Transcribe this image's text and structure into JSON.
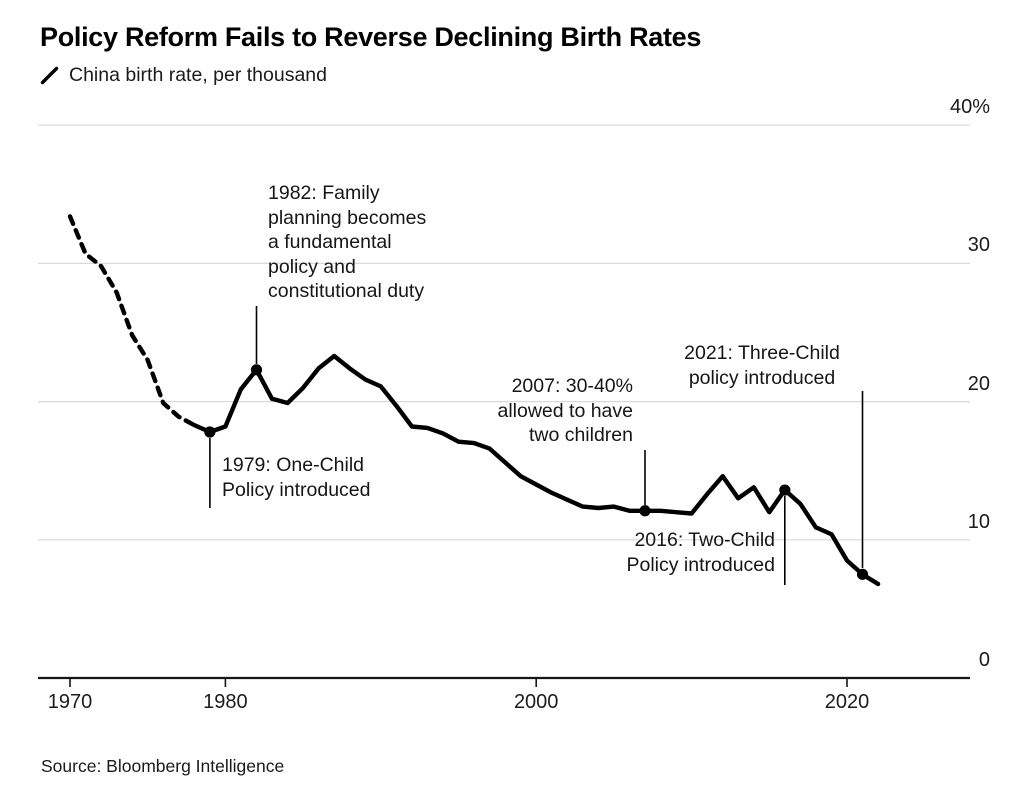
{
  "header": {
    "title": "Policy Reform Fails to Reverse Declining Birth Rates",
    "legend_label": "China birth rate, per thousand"
  },
  "footer": {
    "source": "Source: Bloomberg Intelligence"
  },
  "chart_data": {
    "type": "line",
    "title": "Policy Reform Fails to Reverse Declining Birth Rates",
    "series": [
      {
        "name": "China birth rate, per thousand",
        "x": [
          1970,
          1971,
          1972,
          1973,
          1974,
          1975,
          1976,
          1977,
          1978,
          1979,
          1980,
          1981,
          1982,
          1983,
          1984,
          1985,
          1986,
          1987,
          1988,
          1989,
          1990,
          1991,
          1992,
          1993,
          1994,
          1995,
          1996,
          1997,
          1998,
          1999,
          2000,
          2001,
          2002,
          2003,
          2004,
          2005,
          2006,
          2007,
          2008,
          2009,
          2010,
          2011,
          2012,
          2013,
          2014,
          2015,
          2016,
          2017,
          2018,
          2019,
          2020,
          2021,
          2022
        ],
        "values": [
          33.4,
          30.7,
          29.8,
          27.9,
          24.8,
          23.0,
          19.9,
          18.9,
          18.3,
          17.8,
          18.2,
          20.9,
          22.3,
          20.2,
          19.9,
          21.0,
          22.4,
          23.3,
          22.4,
          21.6,
          21.1,
          19.7,
          18.2,
          18.1,
          17.7,
          17.1,
          17.0,
          16.6,
          15.6,
          14.6,
          14.0,
          13.4,
          12.9,
          12.4,
          12.3,
          12.4,
          12.1,
          12.1,
          12.1,
          12.0,
          11.9,
          13.3,
          14.6,
          13.0,
          13.8,
          12.0,
          13.6,
          12.6,
          10.9,
          10.4,
          8.5,
          7.5,
          6.8
        ],
        "dashed_until_year": 1978
      }
    ],
    "ylim": [
      0,
      40
    ],
    "yticks": [
      {
        "value": 40,
        "label": "40%"
      },
      {
        "value": 30,
        "label": "30"
      },
      {
        "value": 20,
        "label": "20"
      },
      {
        "value": 10,
        "label": "10"
      },
      {
        "value": 0,
        "label": "0"
      }
    ],
    "xticks": [
      {
        "value": 1970,
        "label": "1970"
      },
      {
        "value": 1980,
        "label": "1980"
      },
      {
        "value": 2000,
        "label": "2000"
      },
      {
        "value": 2020,
        "label": "2020"
      }
    ],
    "grid": "horizontal",
    "legend_position": "top-left",
    "annotations": [
      {
        "id": "a1979",
        "year": 1979,
        "lines": [
          "1979: One-Child",
          "Policy introduced"
        ]
      },
      {
        "id": "a1982",
        "year": 1982,
        "lines": [
          "1982: Family",
          "planning becomes",
          "a fundamental",
          "policy and",
          "constitutional duty"
        ]
      },
      {
        "id": "a2007",
        "year": 2007,
        "lines": [
          "2007: 30-40%",
          "allowed to have",
          "two children"
        ]
      },
      {
        "id": "a2016",
        "year": 2016,
        "lines": [
          "2016: Two-Child",
          "Policy introduced"
        ]
      },
      {
        "id": "a2021",
        "year": 2021,
        "lines": [
          "2021: Three-Child",
          "policy introduced"
        ]
      }
    ],
    "marker_years": [
      1979,
      1982,
      2007,
      2016,
      2021
    ],
    "colors": {
      "line": "#000000",
      "grid": "#d9d9d9",
      "axis": "#161616",
      "text": "#161616",
      "background": "#ffffff"
    }
  }
}
